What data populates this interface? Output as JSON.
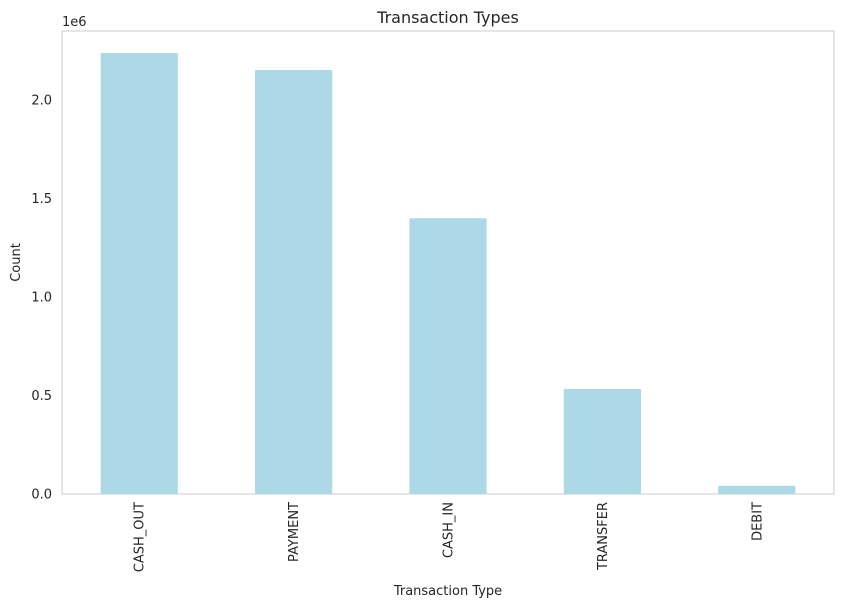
{
  "chart_data": {
    "type": "bar",
    "title": "Transaction Types",
    "xlabel": "Transaction Type",
    "ylabel": "Count",
    "y_offset_label": "1e6",
    "categories": [
      "CASH_OUT",
      "PAYMENT",
      "CASH_IN",
      "TRANSFER",
      "DEBIT"
    ],
    "values": [
      2237500,
      2151495,
      1399284,
      532909,
      41432
    ],
    "ylim": [
      0,
      2349375
    ],
    "yticks": [
      0,
      500000,
      1000000,
      1500000,
      2000000
    ],
    "ytick_labels": [
      "0.0",
      "0.5",
      "1.0",
      "1.5",
      "2.0"
    ],
    "bar_color": "#add8e6",
    "grid": false,
    "x_label_rotation": "vertical"
  }
}
